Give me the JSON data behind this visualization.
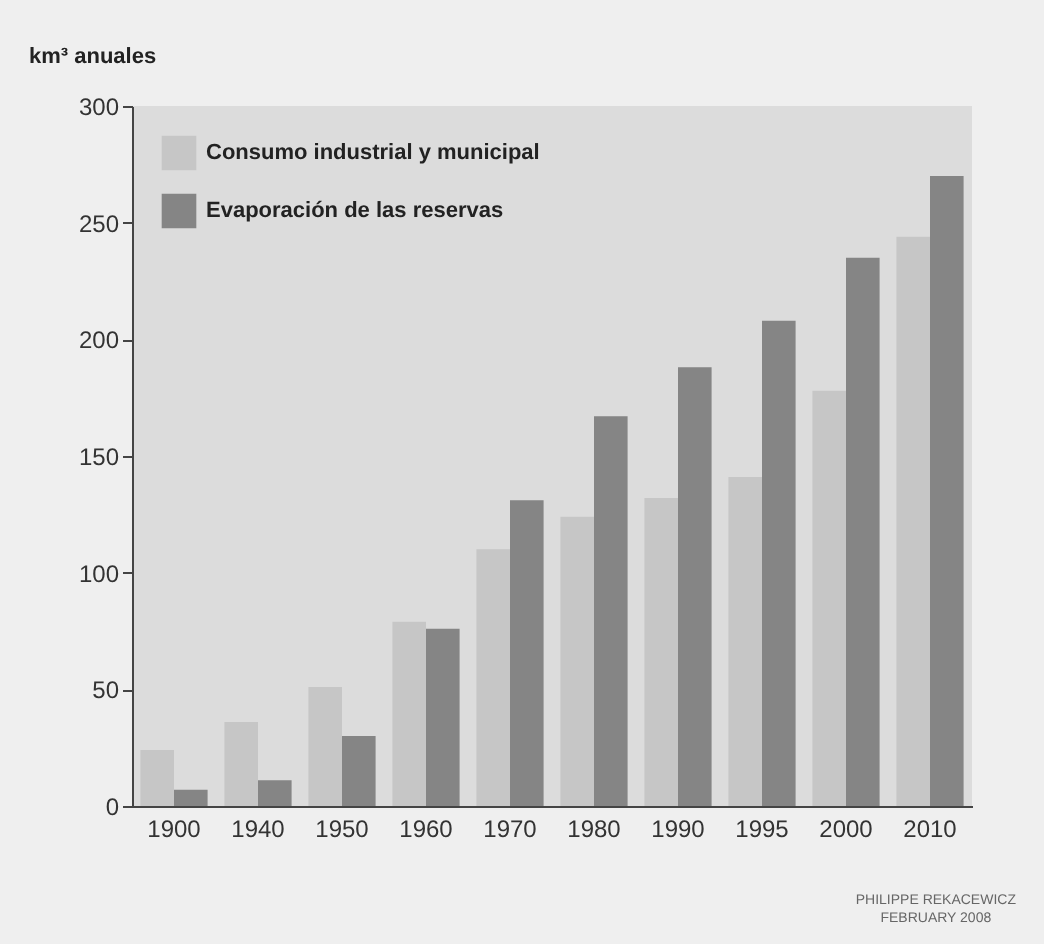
{
  "chart_data": {
    "type": "bar",
    "ylabel": "km³ anuales",
    "categories": [
      "1900",
      "1940",
      "1950",
      "1960",
      "1970",
      "1980",
      "1990",
      "1995",
      "2000",
      "2010"
    ],
    "series": [
      {
        "name": "Consumo industrial y municipal",
        "color": "#c6c6c6",
        "values": [
          24,
          36,
          51,
          79,
          110,
          124,
          132,
          141,
          178,
          244
        ]
      },
      {
        "name": "Evaporación de las reservas",
        "color": "#858585",
        "values": [
          7,
          11,
          30,
          76,
          131,
          167,
          188,
          208,
          235,
          270
        ]
      }
    ],
    "ylim": [
      0,
      300
    ],
    "yticks": [
      0,
      50,
      100,
      150,
      200,
      250,
      300
    ],
    "legend": "top left",
    "annotations": [
      "PHILIPPE REKACEWICZ",
      "FEBRUARY 2008"
    ]
  }
}
